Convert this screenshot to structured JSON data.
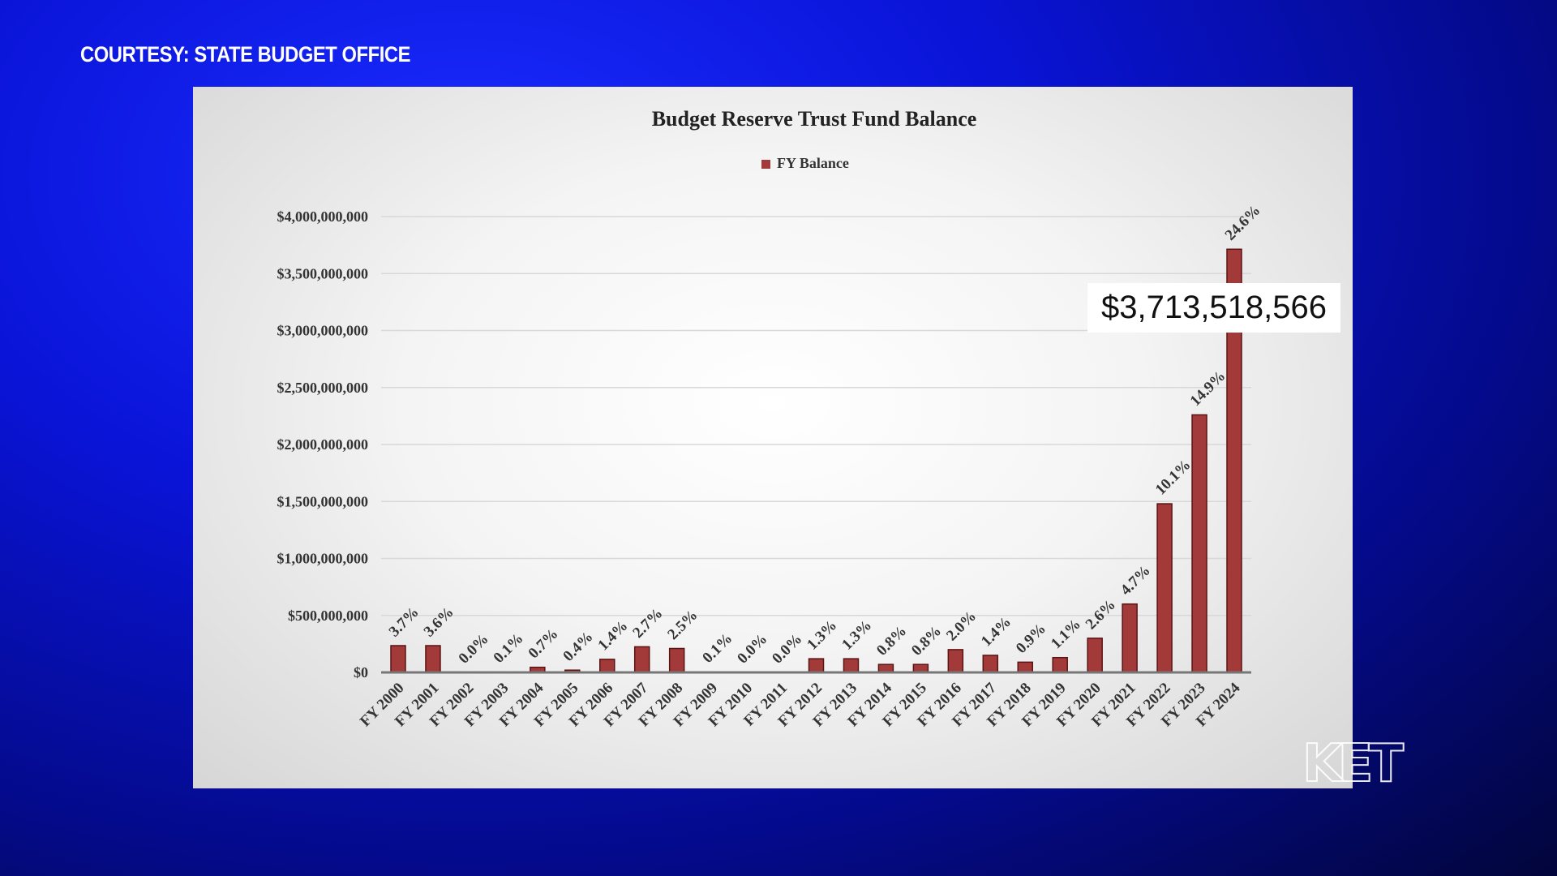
{
  "overlay": {
    "courtesy": "COURTESY: STATE BUDGET OFFICE",
    "logo": "KET",
    "callout": "$3,713,518,566"
  },
  "colors": {
    "bar": "#a33a3a",
    "bar_edge": "#5a1414"
  },
  "chart_data": {
    "type": "bar",
    "title": "Budget Reserve Trust Fund Balance",
    "legend": [
      "FY Balance"
    ],
    "legend_position": "top-center",
    "xlabel": "",
    "ylabel": "",
    "ylim": [
      0,
      4000000000
    ],
    "grid": true,
    "yticks": [
      "$0",
      "$500,000,000",
      "$1,000,000,000",
      "$1,500,000,000",
      "$2,000,000,000",
      "$2,500,000,000",
      "$3,000,000,000",
      "$3,500,000,000",
      "$4,000,000,000"
    ],
    "categories": [
      "FY 2000",
      "FY 2001",
      "FY 2002",
      "FY 2003",
      "FY 2004",
      "FY 2005",
      "FY 2006",
      "FY 2007",
      "FY 2008",
      "FY 2009",
      "FY 2010",
      "FY 2011",
      "FY 2012",
      "FY 2013",
      "FY 2014",
      "FY 2015",
      "FY 2016",
      "FY 2017",
      "FY 2018",
      "FY 2019",
      "FY 2020",
      "FY 2021",
      "FY 2022",
      "FY 2023",
      "FY 2024"
    ],
    "series": [
      {
        "name": "FY Balance",
        "values": [
          235000000,
          235000000,
          0,
          5000000,
          45000000,
          20000000,
          115000000,
          225000000,
          210000000,
          5000000,
          0,
          0,
          120000000,
          120000000,
          70000000,
          70000000,
          200000000,
          150000000,
          90000000,
          130000000,
          300000000,
          600000000,
          1480000000,
          2260000000,
          3713518566
        ]
      }
    ],
    "data_labels": [
      "3.7%",
      "3.6%",
      "0.0%",
      "0.1%",
      "0.7%",
      "0.4%",
      "1.4%",
      "2.7%",
      "2.5%",
      "0.1%",
      "0.0%",
      "0.0%",
      "1.3%",
      "1.3%",
      "0.8%",
      "0.8%",
      "2.0%",
      "1.4%",
      "0.9%",
      "1.1%",
      "2.6%",
      "4.7%",
      "10.1%",
      "14.9%",
      "24.6%"
    ]
  }
}
